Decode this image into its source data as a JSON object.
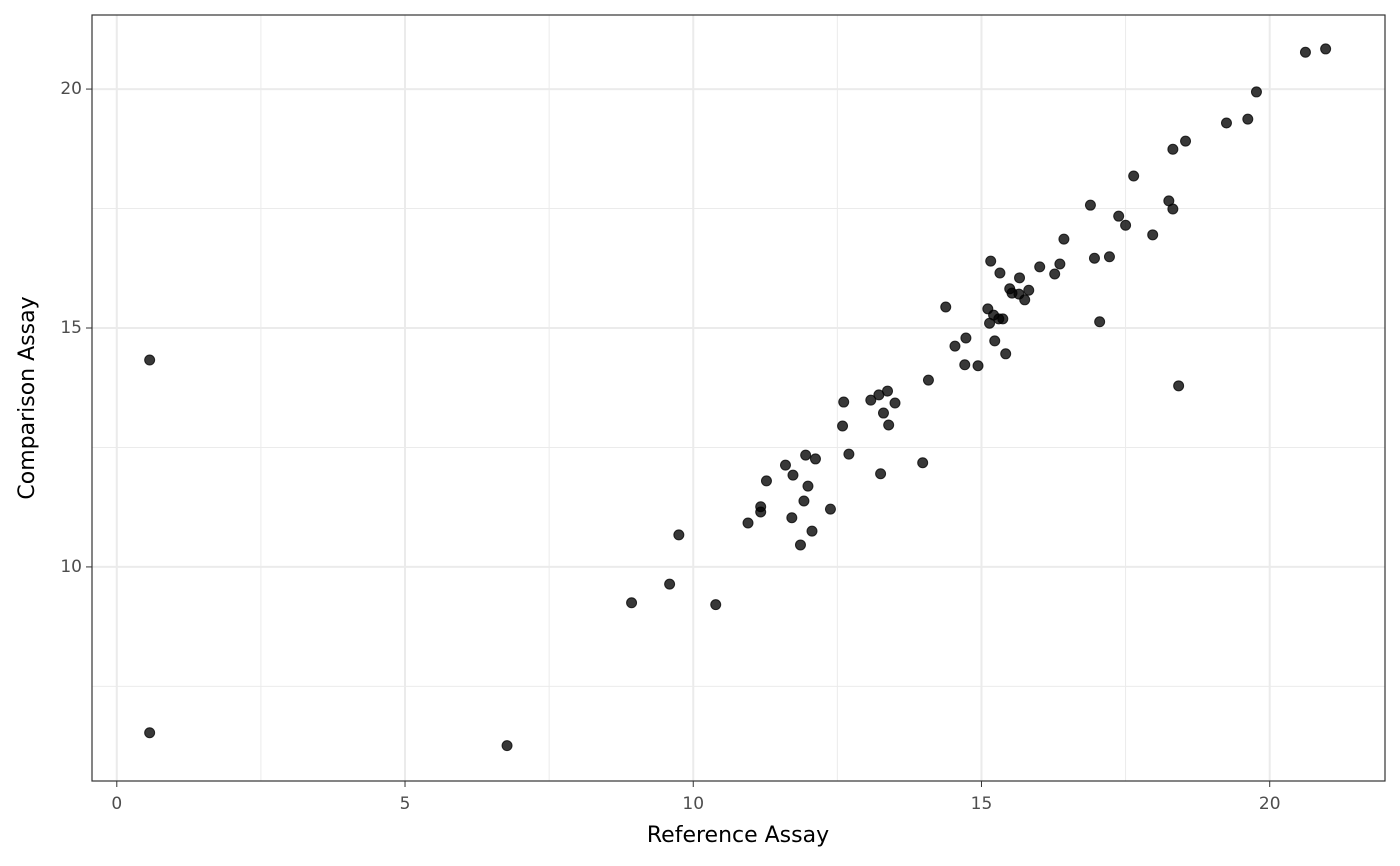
{
  "chart_data": {
    "type": "scatter",
    "xlabel": "Reference Assay",
    "ylabel": "Comparison Assay",
    "x": [
      0.57,
      0.57,
      6.77,
      8.93,
      9.59,
      9.75,
      10.39,
      10.95,
      11.17,
      11.17,
      11.27,
      11.6,
      11.71,
      11.73,
      11.86,
      11.92,
      11.95,
      11.99,
      12.06,
      12.12,
      12.38,
      12.59,
      12.61,
      12.7,
      13.08,
      13.22,
      13.25,
      13.3,
      13.37,
      13.39,
      13.5,
      13.98,
      14.08,
      14.38,
      14.54,
      14.71,
      14.73,
      14.94,
      15.11,
      15.14,
      15.16,
      15.21,
      15.23,
      15.3,
      15.32,
      15.37,
      15.42,
      15.49,
      15.53,
      15.65,
      15.66,
      15.75,
      15.82,
      16.01,
      16.27,
      16.36,
      16.43,
      16.89,
      16.96,
      17.05,
      17.22,
      17.38,
      17.5,
      17.64,
      17.97,
      18.25,
      18.32,
      18.32,
      18.42,
      18.54,
      19.25,
      19.62,
      19.77,
      20.62,
      20.97
    ],
    "y": [
      14.33,
      6.53,
      6.26,
      9.25,
      9.64,
      10.67,
      9.21,
      10.92,
      11.26,
      11.15,
      11.8,
      12.13,
      11.03,
      11.92,
      10.46,
      11.38,
      12.34,
      11.69,
      10.75,
      12.26,
      11.21,
      12.95,
      13.45,
      12.36,
      13.49,
      13.6,
      11.95,
      13.22,
      13.68,
      12.97,
      13.43,
      12.18,
      13.91,
      15.44,
      14.62,
      14.23,
      14.79,
      14.21,
      15.4,
      15.1,
      16.4,
      15.27,
      14.73,
      15.19,
      16.15,
      15.19,
      14.46,
      15.82,
      15.73,
      15.71,
      16.05,
      15.59,
      15.79,
      16.28,
      16.13,
      16.34,
      16.86,
      17.57,
      16.46,
      15.13,
      16.49,
      17.34,
      17.15,
      18.18,
      16.95,
      17.66,
      17.49,
      18.74,
      13.79,
      18.91,
      19.29,
      19.37,
      19.94,
      20.77,
      20.84
    ],
    "color": "#000000",
    "xlim": [
      -0.43,
      22.0
    ],
    "ylim": [
      5.52,
      21.55
    ],
    "xticks": [
      0,
      5,
      10,
      15,
      20
    ],
    "yticks": [
      10,
      15,
      20
    ],
    "grid": true
  }
}
